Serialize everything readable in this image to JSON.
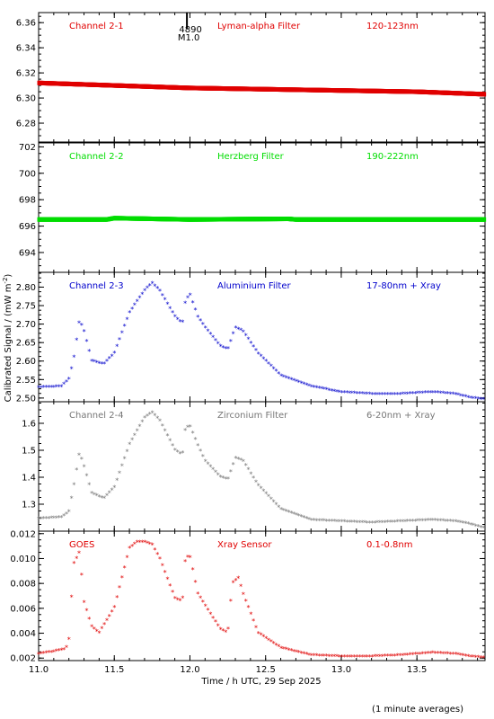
{
  "chart_data": {
    "type": "scatter",
    "xlabel": "Time / h UTC, 29 Sep 2025",
    "ylabel": "Calibrated Signal / (mW m",
    "ylabel_sup": "-2",
    "ylabel_close": ")",
    "footnote": "(1 minute averages)",
    "xlim": [
      11.0,
      13.95
    ],
    "xticks": [
      "11.0",
      "11.5",
      "12.0",
      "12.5",
      "13.0",
      "13.5"
    ],
    "xtick_values": [
      11.0,
      11.5,
      12.0,
      12.5,
      13.0,
      13.5
    ],
    "marker": {
      "label": "4890",
      "sublabel": "M1.0",
      "x": 11.98
    },
    "panels": [
      {
        "name": "Channel 2-1",
        "filter": "Lyman-alpha Filter",
        "band": "120-123nm",
        "color": "#e00000",
        "ylim": [
          6.265,
          6.368
        ],
        "yticks": [
          "6.28",
          "6.30",
          "6.32",
          "6.34",
          "6.36"
        ],
        "ytick_values": [
          6.28,
          6.3,
          6.32,
          6.34,
          6.36
        ],
        "x": [
          11.0,
          11.5,
          12.0,
          12.5,
          13.0,
          13.5,
          13.95
        ],
        "values": [
          6.312,
          6.31,
          6.308,
          6.307,
          6.306,
          6.305,
          6.303
        ]
      },
      {
        "name": "Channel 2-2",
        "filter": "Herzberg Filter",
        "band": "190-222nm",
        "color": "#00dd00",
        "ylim": [
          692.5,
          702.3
        ],
        "yticks": [
          "694",
          "696",
          "698",
          "700",
          "702"
        ],
        "ytick_values": [
          694,
          696,
          698,
          700,
          702
        ],
        "x": [
          11.0,
          11.45,
          11.5,
          12.0,
          12.65,
          12.7,
          13.1,
          13.95
        ],
        "values": [
          696.5,
          696.5,
          696.6,
          696.5,
          696.55,
          696.5,
          696.5,
          696.5
        ]
      },
      {
        "name": "Channel 2-3",
        "filter": "Aluminium Filter",
        "band": "17-80nm + Xray",
        "color": "#0000cc",
        "ylim": [
          2.49,
          2.84
        ],
        "yticks": [
          "2.50",
          "2.55",
          "2.60",
          "2.65",
          "2.70",
          "2.75",
          "2.80"
        ],
        "ytick_values": [
          2.5,
          2.55,
          2.6,
          2.65,
          2.7,
          2.75,
          2.8
        ],
        "x": [
          11.0,
          11.15,
          11.2,
          11.23,
          11.27,
          11.3,
          11.35,
          11.43,
          11.5,
          11.6,
          11.7,
          11.75,
          11.8,
          11.9,
          11.95,
          11.97,
          12.0,
          12.05,
          12.1,
          12.2,
          12.25,
          12.3,
          12.35,
          12.45,
          12.6,
          12.8,
          13.0,
          13.2,
          13.4,
          13.6,
          13.75,
          13.85,
          13.95
        ],
        "values": [
          2.528,
          2.53,
          2.55,
          2.6,
          2.71,
          2.68,
          2.6,
          2.59,
          2.62,
          2.73,
          2.79,
          2.81,
          2.79,
          2.72,
          2.7,
          2.76,
          2.78,
          2.72,
          2.69,
          2.64,
          2.63,
          2.69,
          2.68,
          2.62,
          2.56,
          2.53,
          2.515,
          2.51,
          2.51,
          2.515,
          2.51,
          2.5,
          2.495
        ]
      },
      {
        "name": "Channel 2-4",
        "filter": "Zirconium Filter",
        "band": "6-20nm + Xray",
        "color": "#777777",
        "ylim": [
          1.2,
          1.68
        ],
        "yticks": [
          "1.3",
          "1.4",
          "1.5",
          "1.6"
        ],
        "ytick_values": [
          1.3,
          1.4,
          1.5,
          1.6
        ],
        "x": [
          11.0,
          11.15,
          11.2,
          11.23,
          11.27,
          11.3,
          11.35,
          11.43,
          11.5,
          11.6,
          11.7,
          11.75,
          11.8,
          11.9,
          11.95,
          11.97,
          12.0,
          12.05,
          12.1,
          12.2,
          12.25,
          12.3,
          12.35,
          12.45,
          12.6,
          12.8,
          13.0,
          13.2,
          13.4,
          13.6,
          13.75,
          13.85,
          13.95
        ],
        "values": [
          1.245,
          1.25,
          1.27,
          1.36,
          1.49,
          1.44,
          1.34,
          1.32,
          1.36,
          1.52,
          1.62,
          1.64,
          1.61,
          1.5,
          1.48,
          1.58,
          1.59,
          1.52,
          1.46,
          1.4,
          1.39,
          1.47,
          1.46,
          1.37,
          1.28,
          1.24,
          1.235,
          1.23,
          1.235,
          1.24,
          1.235,
          1.225,
          1.21
        ]
      },
      {
        "name": "GOES",
        "filter": "Xray Sensor",
        "band": "0.1-0.8nm",
        "color": "#e00000",
        "ylim": [
          0.0018,
          0.0122
        ],
        "yticks": [
          "0.002",
          "0.004",
          "0.006",
          "0.008",
          "0.010",
          "0.012"
        ],
        "ytick_values": [
          0.002,
          0.004,
          0.006,
          0.008,
          0.01,
          0.012
        ],
        "x": [
          11.0,
          11.1,
          11.18,
          11.2,
          11.23,
          11.27,
          11.3,
          11.35,
          11.4,
          11.5,
          11.6,
          11.65,
          11.7,
          11.75,
          11.8,
          11.9,
          11.95,
          11.97,
          12.0,
          12.05,
          12.1,
          12.2,
          12.25,
          12.28,
          12.32,
          12.35,
          12.45,
          12.6,
          12.8,
          13.0,
          13.2,
          13.4,
          13.6,
          13.75,
          13.85,
          13.95
        ],
        "values": [
          0.0023,
          0.0025,
          0.0027,
          0.0034,
          0.0095,
          0.0105,
          0.0065,
          0.0045,
          0.004,
          0.006,
          0.0108,
          0.0113,
          0.0113,
          0.0111,
          0.01,
          0.0068,
          0.0065,
          0.01,
          0.0102,
          0.0072,
          0.0062,
          0.0043,
          0.004,
          0.008,
          0.0084,
          0.0072,
          0.004,
          0.0028,
          0.0022,
          0.0021,
          0.0021,
          0.0022,
          0.0024,
          0.0023,
          0.0021,
          0.002
        ]
      }
    ]
  }
}
